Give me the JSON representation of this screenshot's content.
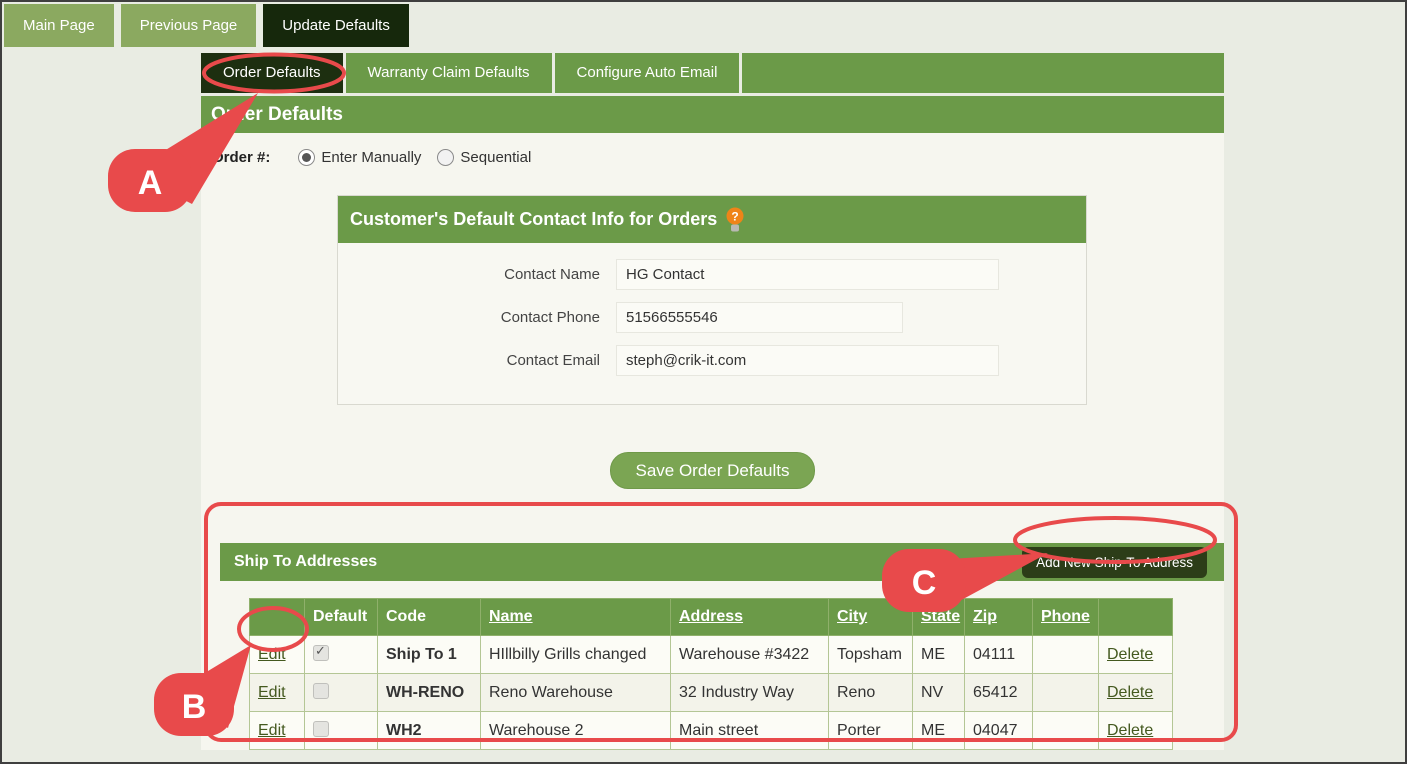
{
  "topnav": {
    "tabs": [
      {
        "label": "Main Page",
        "active": false
      },
      {
        "label": "Previous Page",
        "active": false
      },
      {
        "label": "Update Defaults",
        "active": true
      }
    ]
  },
  "defaults_tabs": [
    {
      "label": "Order Defaults",
      "active": true
    },
    {
      "label": "Warranty Claim Defaults",
      "active": false
    },
    {
      "label": "Configure Auto Email",
      "active": false
    }
  ],
  "page": {
    "title": "Order Defaults"
  },
  "order_number": {
    "label": "Order #:",
    "options": [
      {
        "label": "Enter Manually",
        "selected": true
      },
      {
        "label": "Sequential",
        "selected": false
      }
    ]
  },
  "contact_box": {
    "title": "Customer's Default Contact Info for Orders",
    "help_icon": "lightbulb-question-icon",
    "fields": [
      {
        "label": "Contact Name",
        "value": "HG Contact"
      },
      {
        "label": "Contact Phone",
        "value": "51566555546"
      },
      {
        "label": "Contact Email",
        "value": "steph@crik-it.com"
      }
    ]
  },
  "save_button_label": "Save Order Defaults",
  "shipto": {
    "title": "Ship To Addresses",
    "add_button_label": "Add New Ship-To Address",
    "table": {
      "headers": [
        {
          "label": "",
          "underline": false
        },
        {
          "label": "Default",
          "underline": false
        },
        {
          "label": "Code",
          "underline": false
        },
        {
          "label": "Name",
          "underline": true
        },
        {
          "label": "Address",
          "underline": true
        },
        {
          "label": "City",
          "underline": true
        },
        {
          "label": "State",
          "underline": true
        },
        {
          "label": "Zip",
          "underline": true
        },
        {
          "label": "Phone",
          "underline": true
        },
        {
          "label": "",
          "underline": false
        }
      ],
      "edit_label": "Edit",
      "delete_label": "Delete",
      "rows": [
        {
          "default_checked": true,
          "code": "Ship To 1",
          "name": "HIllbilly Grills changed",
          "address": "Warehouse #3422",
          "city": "Topsham",
          "state": "ME",
          "zip": "04111",
          "phone": ""
        },
        {
          "default_checked": false,
          "code": "WH-RENO",
          "name": "Reno Warehouse",
          "address": "32 Industry Way",
          "city": "Reno",
          "state": "NV",
          "zip": "65412",
          "phone": ""
        },
        {
          "default_checked": false,
          "code": "WH2",
          "name": "Warehouse 2",
          "address": "Main street",
          "city": "Porter",
          "state": "ME",
          "zip": "04047",
          "phone": ""
        }
      ]
    }
  },
  "annotations": {
    "a": "A",
    "b": "B",
    "c": "C"
  },
  "colors": {
    "section_green": "#6b9a48",
    "light_tab_green": "#8ba960",
    "dark_tab_green": "#16280c",
    "save_button_green": "#7ba553",
    "add_button_dark_green": "#2c3d18",
    "annotation_red": "#e84a4b",
    "page_background": "#e9ece3",
    "content_background": "#f6f6ef"
  }
}
